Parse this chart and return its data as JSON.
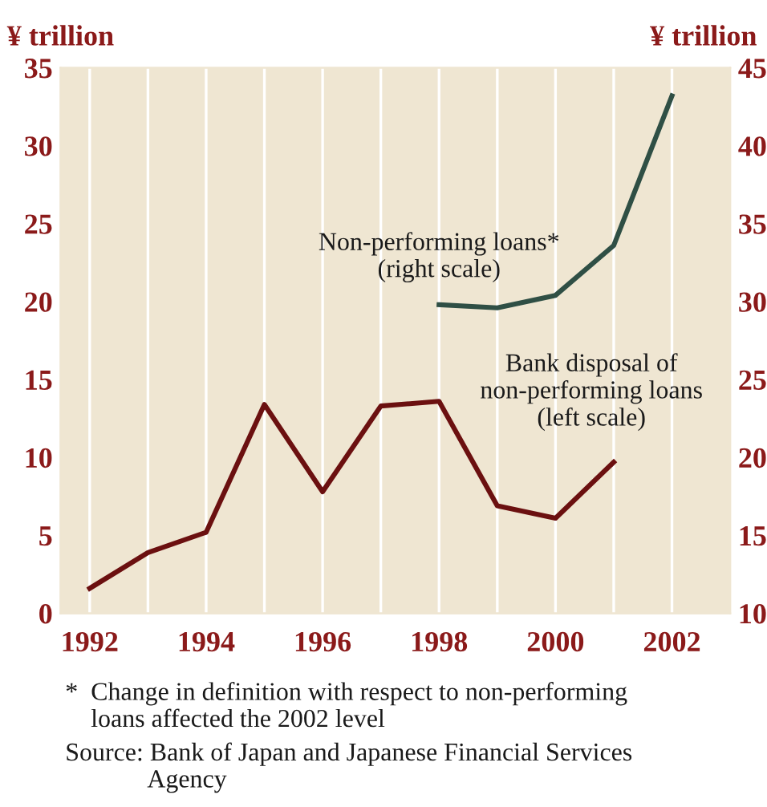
{
  "chart_data": {
    "type": "line",
    "ylabel": "¥ trillion",
    "y2label": "¥ trillion",
    "x": [
      1992,
      1993,
      1994,
      1995,
      1996,
      1997,
      1998,
      1999,
      2000,
      2001,
      2002
    ],
    "series": [
      {
        "name": "Bank disposal of\nnon-performing loans\n(left scale)",
        "color": "#6b1010",
        "values": [
          1.6,
          3.9,
          5.2,
          13.4,
          7.8,
          13.3,
          13.6,
          6.9,
          6.1,
          9.7,
          null
        ]
      },
      {
        "name": "Non-performing loans*\n(right scale)",
        "color": "#2f4f45",
        "axis": "y2",
        "values": [
          null,
          null,
          null,
          null,
          null,
          null,
          29.8,
          29.6,
          30.4,
          33.6,
          43.2
        ]
      }
    ],
    "xlim": [
      1991.5,
      2003.0
    ],
    "ylim": [
      0,
      35
    ],
    "y2lim": [
      10,
      45
    ],
    "xticks": [
      1992,
      {
        "value": 1993,
        "label": null
      },
      1994,
      {
        "value": 1995,
        "label": null
      },
      1996,
      {
        "value": 1997,
        "label": null
      },
      1998,
      {
        "value": 1999,
        "label": null
      },
      2000,
      {
        "value": 2001,
        "label": null
      },
      2002
    ],
    "yticks": [
      0,
      5,
      10,
      15,
      20,
      25,
      30,
      35
    ],
    "y2ticks": [
      10,
      15,
      20,
      25,
      30,
      35,
      40,
      45
    ],
    "grid": "x",
    "legend": false,
    "marker": "none",
    "line_style": "solid",
    "annotations": [
      "*  Change in definition with respect to non-performing\n    loans affected the 2002 level",
      "Source: Bank of Japan and Japanese Financial Services\n             Agency"
    ]
  }
}
